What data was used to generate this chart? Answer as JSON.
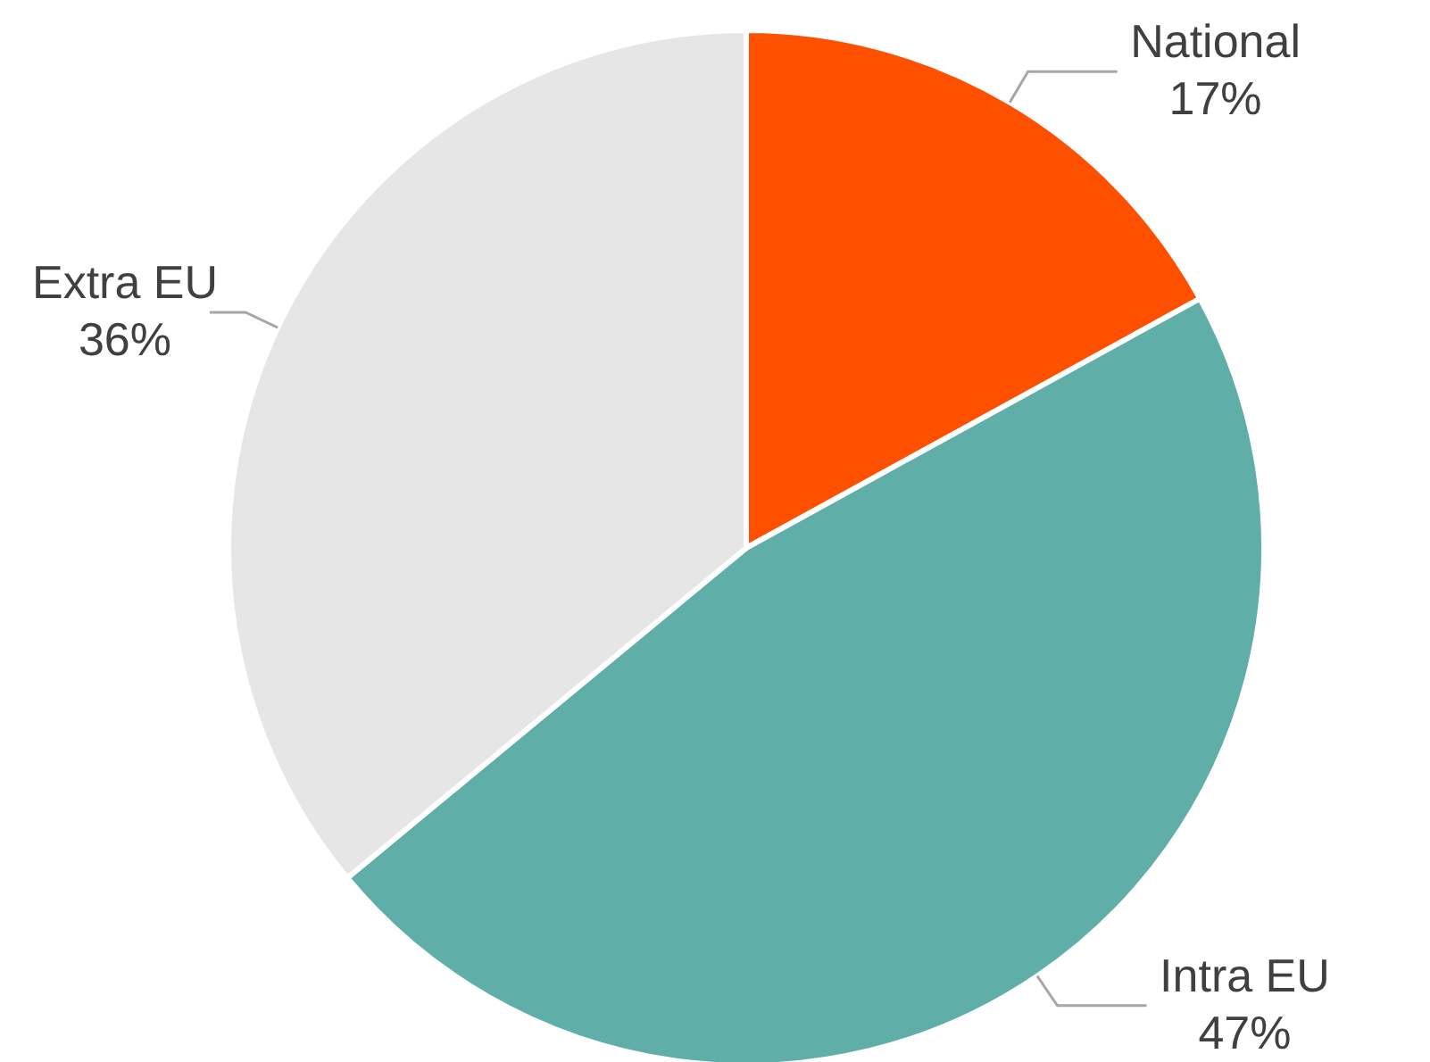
{
  "chart_data": {
    "type": "pie",
    "categories": [
      "National",
      "Intra EU",
      "Extra EU"
    ],
    "values": [
      17,
      47,
      36
    ],
    "colors": [
      "#ff5000",
      "#5fafa8",
      "#e6e6e6"
    ],
    "value_labels": [
      "17%",
      "47%",
      "36%"
    ],
    "legend": false
  }
}
